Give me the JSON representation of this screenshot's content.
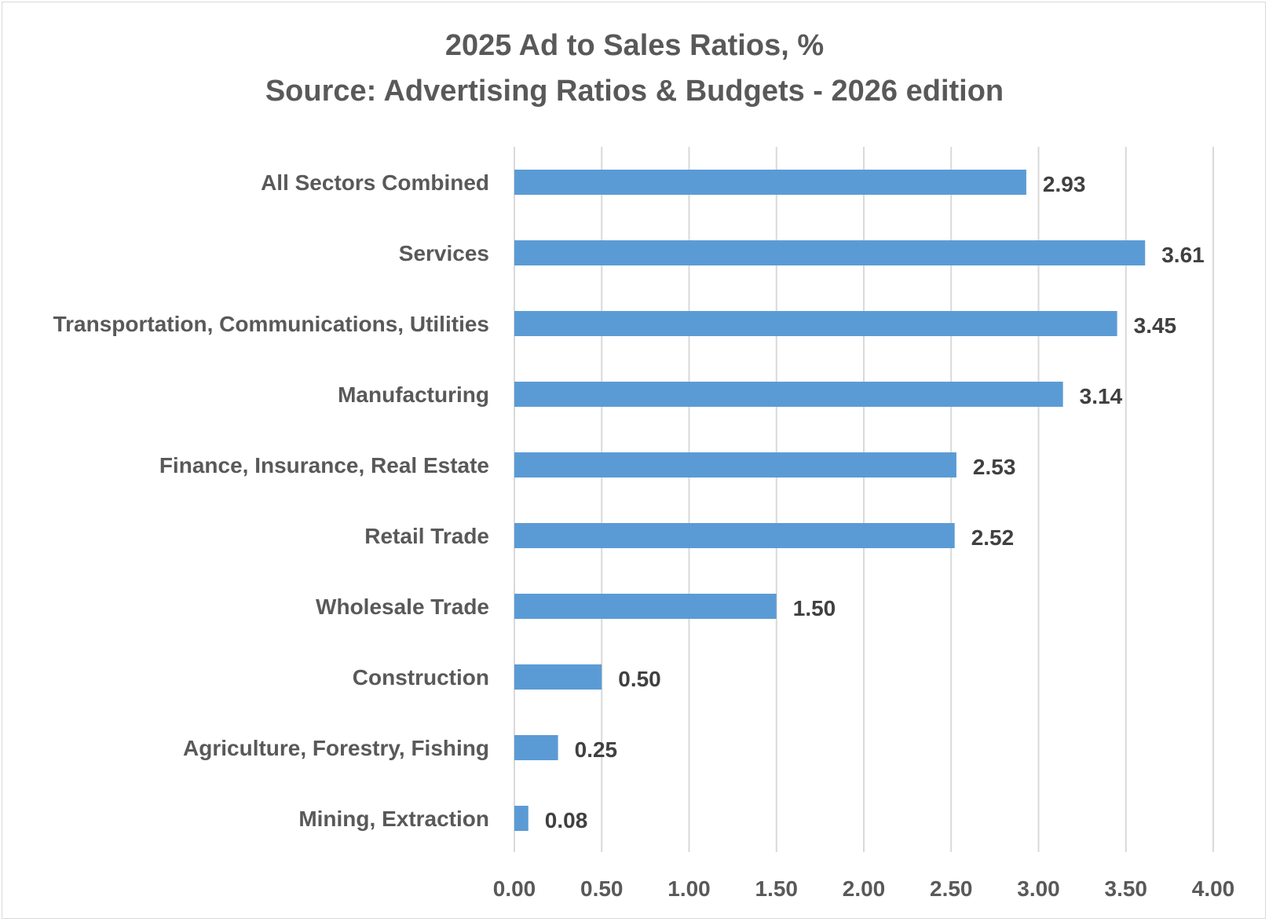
{
  "chart_data": {
    "type": "bar",
    "orientation": "horizontal",
    "title": "2025 Ad to Sales Ratios, %",
    "subtitle": "Source: Advertising Ratios & Budgets - 2026 edition",
    "categories": [
      "All Sectors Combined",
      "Services",
      "Transportation, Communications, Utilities",
      "Manufacturing",
      "Finance, Insurance, Real Estate",
      "Retail Trade",
      "Wholesale Trade",
      "Construction",
      "Agriculture, Forestry, Fishing",
      "Mining, Extraction"
    ],
    "values": [
      2.93,
      3.61,
      3.45,
      3.14,
      2.53,
      2.52,
      1.5,
      0.5,
      0.25,
      0.08
    ],
    "data_labels": [
      "2.93",
      "3.61",
      "3.45",
      "3.14",
      "2.53",
      "2.52",
      "1.50",
      "0.50",
      "0.25",
      "0.08"
    ],
    "x_ticks": [
      0.0,
      0.5,
      1.0,
      1.5,
      2.0,
      2.5,
      3.0,
      3.5,
      4.0
    ],
    "x_tick_labels": [
      "0.00",
      "0.50",
      "1.00",
      "1.50",
      "2.00",
      "2.50",
      "3.00",
      "3.50",
      "4.00"
    ],
    "xlim": [
      0,
      4
    ],
    "xlabel": "",
    "ylabel": "",
    "grid": "vertical",
    "legend": "none",
    "bar_color": "#5b9bd5",
    "gridline_color": "#d9d9d9",
    "text_color": "#595959"
  }
}
